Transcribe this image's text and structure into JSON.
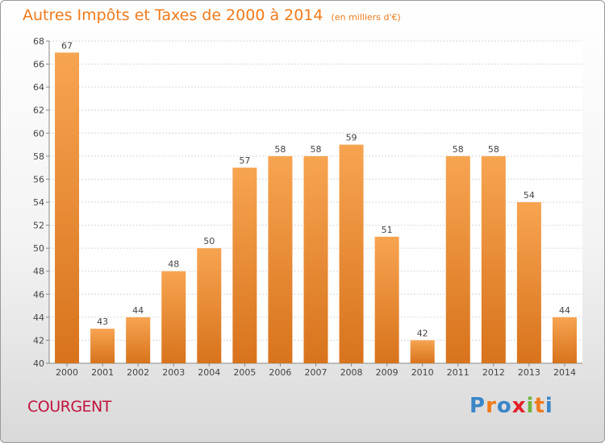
{
  "header": {
    "title": "Autres Impôts et Taxes de 2000 à 2014",
    "unit": "(en milliers d'€)"
  },
  "footer": {
    "commune": "COURGENT",
    "brand": "Proxiti",
    "brand_colors": [
      "#3a86c8",
      "#f07a1a",
      "#3a86c8",
      "#e3202a",
      "#6fb43f",
      "#f07a1a",
      "#3a86c8"
    ]
  },
  "colors": {
    "title": "#f07a1a",
    "commune": "#c0143c",
    "bar_top": "#f7a451",
    "bar_bottom": "#d8731c",
    "grid": "#d6d6d6",
    "label": "#444444"
  },
  "chart_data": {
    "type": "bar",
    "categories": [
      "2000",
      "2001",
      "2002",
      "2003",
      "2004",
      "2005",
      "2006",
      "2007",
      "2008",
      "2009",
      "2010",
      "2011",
      "2012",
      "2013",
      "2014"
    ],
    "values": [
      67,
      43,
      44,
      48,
      50,
      57,
      58,
      58,
      59,
      51,
      42,
      58,
      58,
      54,
      44
    ],
    "ylim": [
      40,
      68
    ],
    "yticks": [
      40,
      42,
      44,
      46,
      48,
      50,
      52,
      54,
      56,
      58,
      60,
      62,
      64,
      66,
      68
    ],
    "grid": true
  }
}
